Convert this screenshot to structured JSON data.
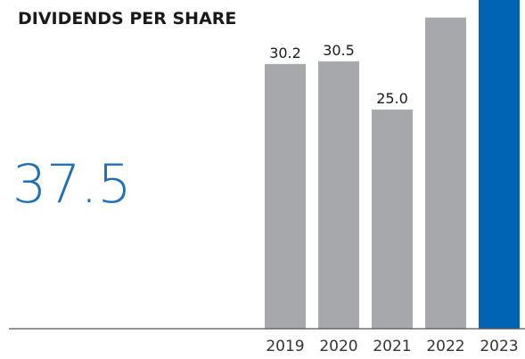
{
  "title": "DIVIDENDS PER SHARE",
  "headline_value": "37.5",
  "colors": {
    "bar_default": "#a7a8ab",
    "bar_highlight": "#0064b4",
    "headline": "#1f6fb6",
    "baseline": "#555555"
  },
  "chart_data": {
    "type": "bar",
    "title": "DIVIDENDS PER SHARE",
    "xlabel": "",
    "ylabel": "",
    "categories": [
      "2019",
      "2020",
      "2021",
      "2022",
      "2023"
    ],
    "values": [
      30.2,
      30.5,
      25.0,
      35.5,
      37.5
    ],
    "data_labels": [
      "30.2",
      "30.5",
      "25.0",
      "",
      ""
    ],
    "highlight_index": 4,
    "ylim": [
      0,
      37.5
    ],
    "grid": false,
    "legend": "none"
  }
}
